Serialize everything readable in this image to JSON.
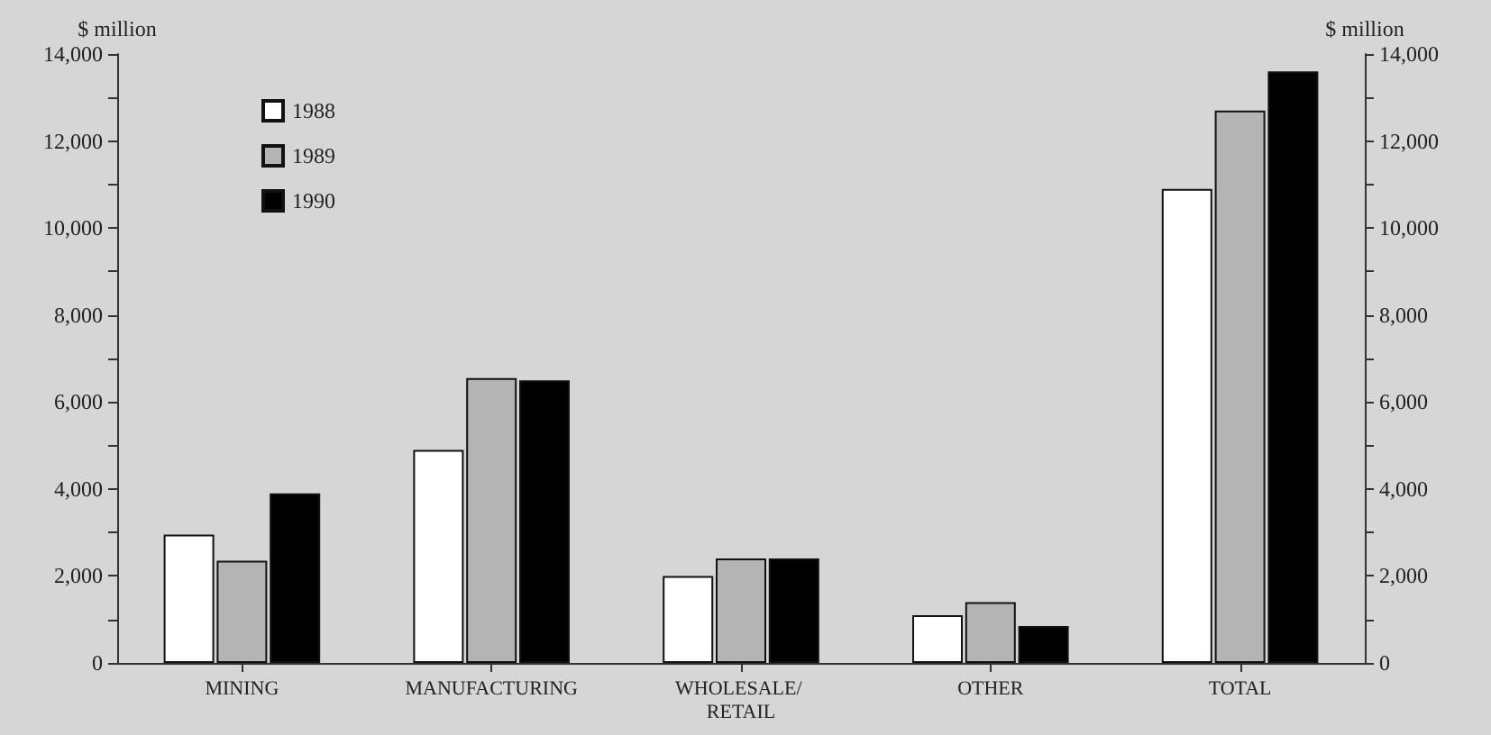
{
  "chart_data": {
    "type": "bar",
    "categories": [
      "MINING",
      "MANUFACTURING",
      "WHOLESALE/ RETAIL",
      "OTHER",
      "TOTAL"
    ],
    "series": [
      {
        "name": "1988",
        "color": "#ffffff",
        "values": [
          2950,
          4900,
          2000,
          1100,
          10900
        ]
      },
      {
        "name": "1989",
        "color": "#b4b4b4",
        "values": [
          2350,
          6550,
          2400,
          1400,
          12700
        ]
      },
      {
        "name": "1990",
        "color": "#000000",
        "values": [
          3900,
          6500,
          2400,
          850,
          13600
        ]
      }
    ],
    "ylabel": "$ million",
    "y2label": "$ million",
    "ylim": [
      0,
      14000
    ],
    "yticks": [
      0,
      {
        "value": 1000,
        "label": null
      },
      {
        "value": 2000,
        "label": "2,000"
      },
      {
        "value": 3000,
        "label": null
      },
      {
        "value": 4000,
        "label": "4,000"
      },
      {
        "value": 5000,
        "label": null
      },
      {
        "value": 6000,
        "label": "6,000"
      },
      {
        "value": 7000,
        "label": null
      },
      {
        "value": 8000,
        "label": "8,000"
      },
      {
        "value": 9000,
        "label": null
      },
      {
        "value": 10000,
        "label": "10,000"
      },
      {
        "value": 11000,
        "label": null
      },
      {
        "value": 12000,
        "label": "12,000"
      },
      {
        "value": 13000,
        "label": null
      },
      {
        "value": 14000,
        "label": "14,000"
      }
    ],
    "y2lim": [
      0,
      14000
    ],
    "y2ticks": [
      0,
      {
        "value": 1000,
        "label": null
      },
      {
        "value": 2000,
        "label": "2,000"
      },
      {
        "value": 3000,
        "label": null
      },
      {
        "value": 4000,
        "label": "4,000"
      },
      {
        "value": 5000,
        "label": null
      },
      {
        "value": 6000,
        "label": "6,000"
      },
      {
        "value": 7000,
        "label": null
      },
      {
        "value": 8000,
        "label": "8,000"
      },
      {
        "value": 9000,
        "label": null
      },
      {
        "value": 10000,
        "label": "10,000"
      },
      {
        "value": 11000,
        "label": null
      },
      {
        "value": 12000,
        "label": "12,000"
      },
      {
        "value": 13000,
        "label": null
      },
      {
        "value": 14000,
        "label": "14,000"
      }
    ],
    "legend": "top left",
    "grid": false
  }
}
